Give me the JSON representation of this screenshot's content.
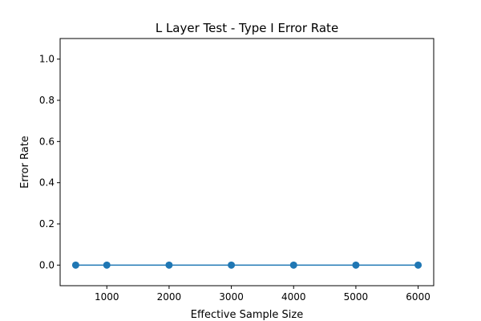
{
  "chart_data": {
    "type": "line",
    "title": "L Layer Test - Type I Error Rate",
    "xlabel": "Effective Sample Size",
    "ylabel": "Error Rate",
    "x": [
      500,
      1000,
      2000,
      3000,
      4000,
      5000,
      6000
    ],
    "series": [
      {
        "values": [
          0.0,
          0.0,
          0.0,
          0.0,
          0.0,
          0.0,
          0.0
        ]
      }
    ],
    "xlim": [
      250,
      6250
    ],
    "ylim": [
      -0.1,
      1.1
    ],
    "xticks": [
      1000,
      2000,
      3000,
      4000,
      5000,
      6000
    ],
    "xtick_labels": [
      "1000",
      "2000",
      "3000",
      "4000",
      "5000",
      "6000"
    ],
    "yticks": [
      0.0,
      0.2,
      0.4,
      0.6,
      0.8,
      1.0
    ],
    "ytick_labels": [
      "0.0",
      "0.2",
      "0.4",
      "0.6",
      "0.8",
      "1.0"
    ],
    "grid": false,
    "legend": false,
    "colors": {
      "series": "#1f77b4",
      "axes": "#000000"
    },
    "marker": "circle"
  }
}
